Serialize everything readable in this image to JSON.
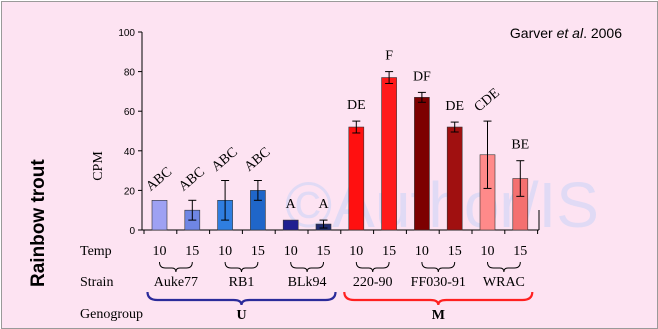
{
  "citation": {
    "text": "Garver ",
    "italic": "et al",
    "suffix": ". 2006"
  },
  "side_label": "Rainbow trout",
  "watermark": "©Author/IS",
  "row_labels": {
    "temp": "Temp",
    "strain": "Strain",
    "genogroup": "Genogroup"
  },
  "chart_data": {
    "type": "bar",
    "ylabel": "CPM",
    "ylim": [
      0,
      100
    ],
    "yticks": [
      0,
      20,
      40,
      60,
      80,
      100
    ],
    "grid": false,
    "categories": [
      "10",
      "15",
      "10",
      "15",
      "10",
      "15",
      "10",
      "15",
      "10",
      "15",
      "10",
      "15"
    ],
    "values": [
      15,
      10,
      15,
      20,
      5,
      3,
      52,
      77,
      67,
      52,
      38,
      26
    ],
    "errors": [
      0,
      5,
      10,
      5,
      0,
      2,
      3,
      3,
      2.5,
      2.5,
      17,
      9
    ],
    "colors": [
      "#9ea1f3",
      "#6f86e4",
      "#2f7ee0",
      "#1f66c9",
      "#1f1f90",
      "#1f2b70",
      "#ff1010",
      "#ff1a1a",
      "#7d0000",
      "#a01010",
      "#ff8a8a",
      "#f47070"
    ],
    "letters": [
      "ABC",
      "ABC",
      "ABC",
      "ABC",
      "A",
      "A",
      "DE",
      "F",
      "DF",
      "DE",
      "CDE",
      "BE"
    ],
    "letter_rotated": [
      true,
      true,
      true,
      true,
      false,
      false,
      false,
      false,
      false,
      false,
      true,
      false
    ],
    "strains": [
      "Auke77",
      "RB1",
      "BLk94",
      "220-90",
      "FF030-91",
      "WRAC"
    ],
    "genogroups": [
      {
        "name": "U",
        "color": "#2b2b9a",
        "strains": [
          0,
          1,
          2
        ]
      },
      {
        "name": "M",
        "color": "#ff2020",
        "strains": [
          3,
          4,
          5
        ]
      }
    ]
  }
}
